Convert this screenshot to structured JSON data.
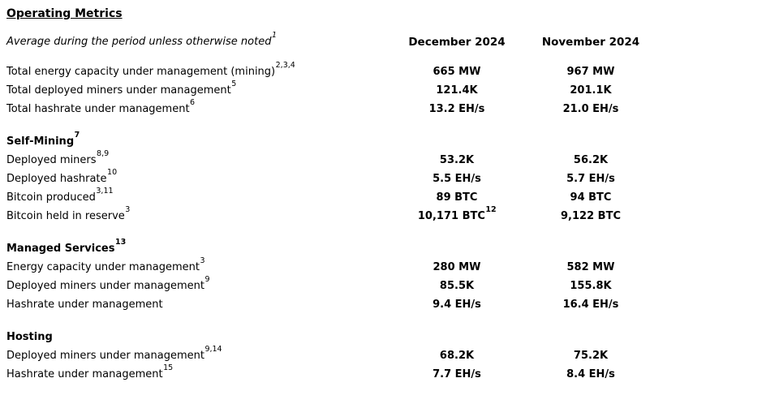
{
  "page": {
    "title": "Operating Metrics",
    "subtitle": "Average during the period unless otherwise noted",
    "subtitle_sup": "1"
  },
  "columns": {
    "dec": "December 2024",
    "nov": "November 2024"
  },
  "colors": {
    "background": "#ffffff",
    "text": "#000000"
  },
  "sections": [
    {
      "rows": [
        {
          "label": "Total energy capacity under management (mining)",
          "sup": "2,3,4",
          "dec": "665 MW",
          "dec_sup": "",
          "nov": "967 MW"
        },
        {
          "label": "Total deployed miners under management",
          "sup": "5",
          "dec": "121.4K",
          "dec_sup": "",
          "nov": "201.1K"
        },
        {
          "label": "Total hashrate under management",
          "sup": "6",
          "dec": "13.2 EH/s",
          "dec_sup": "",
          "nov": "21.0 EH/s"
        }
      ]
    },
    {
      "header": "Self-Mining",
      "header_sup": "7",
      "rows": [
        {
          "label": "Deployed miners",
          "sup": "8,9",
          "dec": "53.2K",
          "dec_sup": "",
          "nov": "56.2K"
        },
        {
          "label": "Deployed hashrate",
          "sup": "10",
          "dec": "5.5 EH/s",
          "dec_sup": "",
          "nov": "5.7 EH/s"
        },
        {
          "label": "Bitcoin produced",
          "sup": "3,11",
          "dec": "89 BTC",
          "dec_sup": "",
          "nov": "94 BTC"
        },
        {
          "label": "Bitcoin held in reserve",
          "sup": "3",
          "dec": "10,171 BTC",
          "dec_sup": "12",
          "nov": "9,122 BTC"
        }
      ]
    },
    {
      "header": "Managed Services",
      "header_sup": "13",
      "rows": [
        {
          "label": "Energy capacity under management",
          "sup": "3",
          "dec": "280 MW",
          "dec_sup": "",
          "nov": "582 MW"
        },
        {
          "label": "Deployed miners under management",
          "sup": "9",
          "dec": "85.5K",
          "dec_sup": "",
          "nov": "155.8K"
        },
        {
          "label": "Hashrate under management",
          "sup": "",
          "dec": "9.4 EH/s",
          "dec_sup": "",
          "nov": "16.4 EH/s"
        }
      ]
    },
    {
      "header": "Hosting",
      "header_sup": "",
      "rows": [
        {
          "label": "Deployed miners under management",
          "sup": "9,14",
          "dec": "68.2K",
          "dec_sup": "",
          "nov": "75.2K"
        },
        {
          "label": "Hashrate under management",
          "sup": "15",
          "dec": "7.7 EH/s",
          "dec_sup": "",
          "nov": "8.4 EH/s"
        }
      ]
    }
  ]
}
